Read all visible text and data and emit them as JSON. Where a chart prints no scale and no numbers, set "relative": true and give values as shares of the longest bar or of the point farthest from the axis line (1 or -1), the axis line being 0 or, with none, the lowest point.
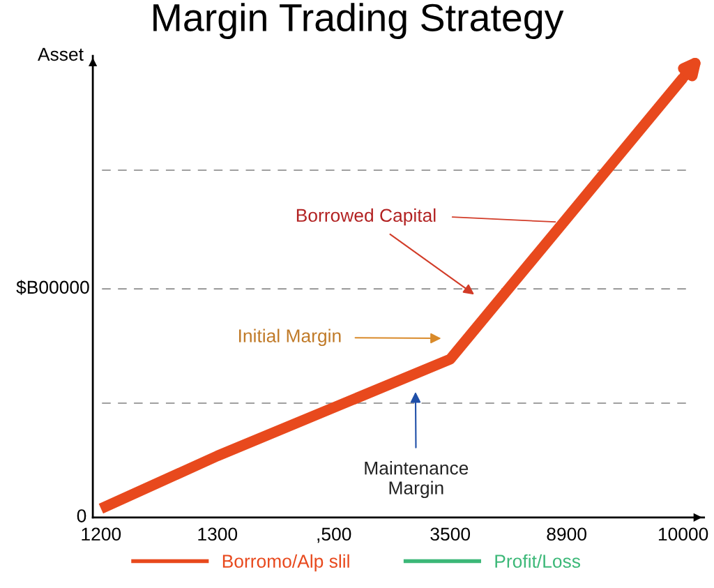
{
  "chart_data": {
    "type": "line",
    "title": "Margin Trading Strategy",
    "ylabel": "Asset",
    "relative": true,
    "categories": [
      "1200",
      "1300",
      ",500",
      "3500",
      "8900",
      "10000"
    ],
    "series": [
      {
        "name": "Borromo/Alp slil",
        "color": "#e8491d",
        "values": [
          0.02,
          0.14,
          0.25,
          0.36,
          0.68,
          1.0
        ]
      },
      {
        "name": "Profit/Loss",
        "color": "#3cb878",
        "values": [
          null,
          null,
          null,
          null,
          null,
          null
        ]
      }
    ],
    "ref_lines": [
      {
        "axis": "y",
        "value": 0.79,
        "label": null,
        "color": "#a0a0a0",
        "line_style": "dashed"
      },
      {
        "axis": "y",
        "value": 0.52,
        "label": "$B00000",
        "color": "#a0a0a0",
        "line_style": "dashed"
      },
      {
        "axis": "y",
        "value": 0.26,
        "label": null,
        "color": "#a0a0a0",
        "line_style": "dashed"
      }
    ],
    "annotations": [
      "Borrowed Capital",
      "Initial Margin",
      "Maintenance\nMargin",
      "0"
    ],
    "legend": "bottom",
    "grid": false,
    "line_style": "solid"
  }
}
